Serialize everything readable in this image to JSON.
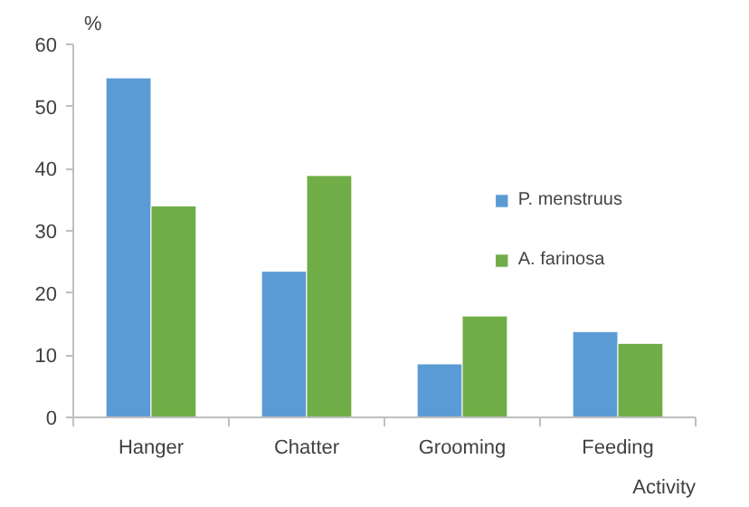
{
  "chart_data": {
    "type": "bar",
    "categories": [
      "Hanger",
      "Chatter",
      "Grooming",
      "Feeding"
    ],
    "series": [
      {
        "name": "P. menstruus",
        "color": "#5b9bd5",
        "values": [
          54.6,
          23.5,
          8.6,
          13.8
        ]
      },
      {
        "name": "A. farinosa",
        "color": "#70ad47",
        "values": [
          34.0,
          38.9,
          16.3,
          11.9
        ]
      }
    ],
    "ylabel": "%",
    "xlabel": "Activity",
    "ylim": [
      0,
      60
    ],
    "yticks": [
      0,
      10,
      20,
      30,
      40,
      50,
      60
    ],
    "grid": false,
    "legend": "right"
  }
}
